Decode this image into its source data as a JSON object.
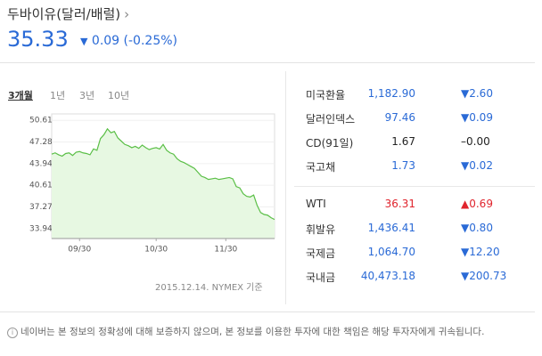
{
  "header": {
    "title": "두바이유(달러/배럴)",
    "price": "35.33",
    "change": "0.09",
    "change_pct": "(-0.25%)"
  },
  "tabs": [
    "3개월",
    "1년",
    "3년",
    "10년"
  ],
  "chart_data": {
    "type": "area",
    "color": "#5bbf47",
    "categories": [
      null,
      null,
      null,
      null,
      null,
      null,
      null,
      null,
      "09/30",
      null,
      null,
      null,
      null,
      null,
      null,
      null,
      null,
      null,
      null,
      null,
      null,
      null,
      null,
      null,
      null,
      null,
      null,
      null,
      null,
      null,
      "10/30",
      null,
      null,
      null,
      null,
      null,
      null,
      null,
      null,
      null,
      null,
      null,
      null,
      null,
      null,
      null,
      null,
      null,
      null,
      null,
      "11/30",
      null,
      null,
      null,
      null,
      null,
      null,
      null,
      null,
      null,
      null,
      null,
      null,
      null,
      null
    ],
    "values": [
      45.4,
      45.6,
      45.3,
      45.1,
      45.5,
      45.6,
      45.2,
      45.7,
      45.8,
      45.6,
      45.5,
      45.3,
      46.2,
      46.0,
      47.8,
      48.4,
      49.3,
      48.7,
      48.9,
      47.9,
      47.4,
      46.9,
      46.7,
      46.4,
      46.6,
      46.3,
      46.8,
      46.4,
      46.1,
      46.3,
      46.4,
      46.2,
      46.9,
      46.0,
      45.6,
      45.4,
      44.7,
      44.3,
      44.1,
      43.8,
      43.5,
      43.2,
      42.6,
      42.0,
      41.8,
      41.5,
      41.6,
      41.7,
      41.5,
      41.6,
      41.7,
      41.8,
      41.6,
      40.4,
      40.2,
      39.3,
      38.9,
      38.8,
      39.1,
      37.5,
      36.4,
      36.1,
      36.0,
      35.6,
      35.33
    ],
    "ylim": [
      32.4,
      51.6
    ],
    "yticks": [
      50.61,
      47.28,
      43.94,
      40.61,
      37.27,
      33.94
    ],
    "grid": true,
    "note": "2015.12.14. NYMEX 기준"
  },
  "table": {
    "groups": [
      [
        {
          "name": "미국환율",
          "value": "1,182.90",
          "change": "2.60",
          "dir": "down"
        },
        {
          "name": "달러인덱스",
          "value": "97.46",
          "change": "0.09",
          "dir": "down"
        },
        {
          "name": "CD(91일)",
          "value": "1.67",
          "change": "0.00",
          "dir": "flat"
        },
        {
          "name": "국고채",
          "value": "1.73",
          "change": "0.02",
          "dir": "down"
        }
      ],
      [
        {
          "name": "WTI",
          "value": "36.31",
          "change": "0.69",
          "dir": "up"
        },
        {
          "name": "휘발유",
          "value": "1,436.41",
          "change": "0.80",
          "dir": "down"
        },
        {
          "name": "국제금",
          "value": "1,064.70",
          "change": "12.20",
          "dir": "down"
        },
        {
          "name": "국내금",
          "value": "40,473.18",
          "change": "200.73",
          "dir": "down"
        }
      ]
    ]
  },
  "footer": "네이버는 본 정보의 정확성에 대해 보증하지 않으며, 본 정보를 이용한 투자에 대한 책임은 해당 투자자에게 귀속됩니다."
}
